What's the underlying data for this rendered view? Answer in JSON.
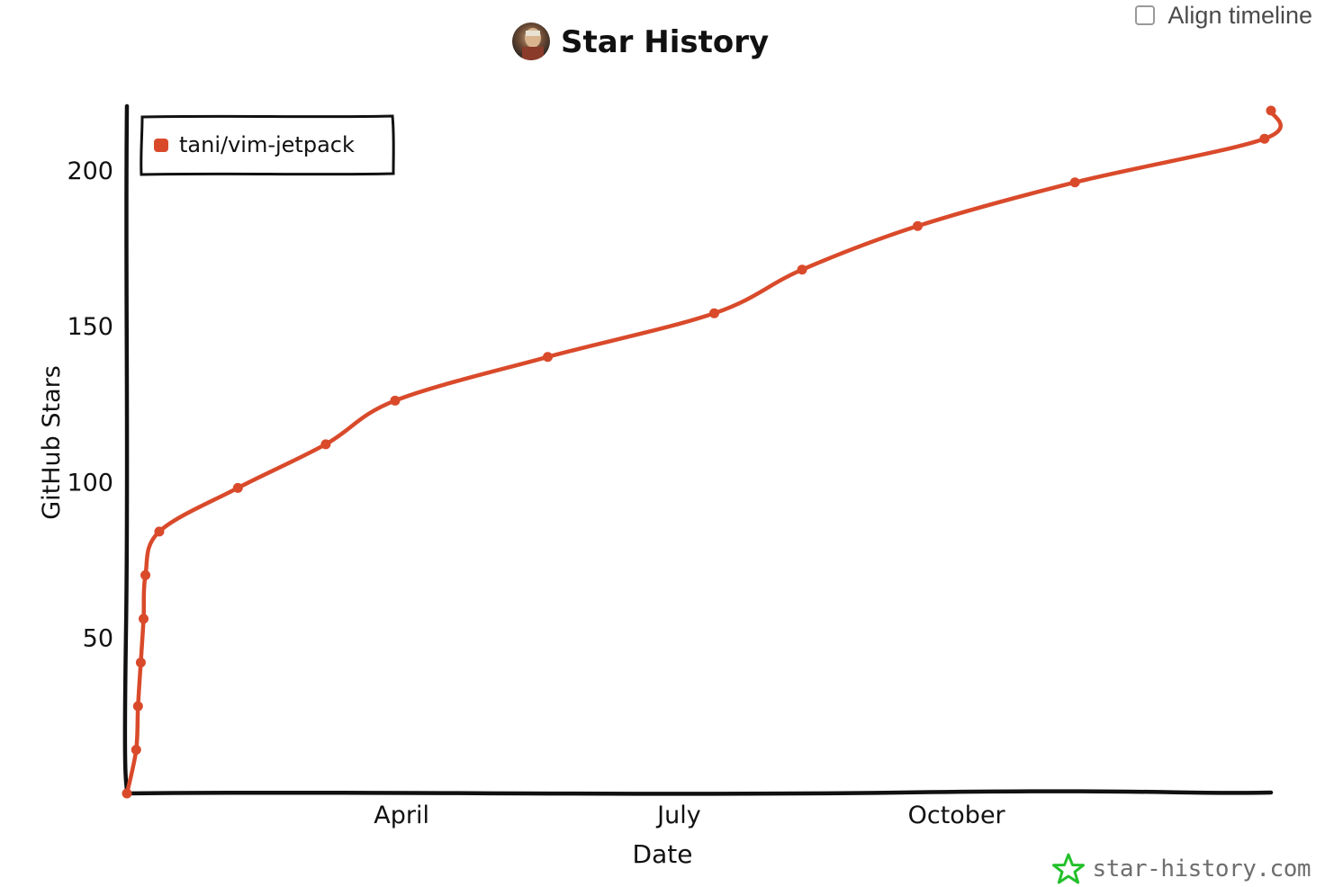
{
  "controls": {
    "align_timeline_label": "Align timeline",
    "align_timeline_checked": false
  },
  "brand": {
    "text": "star-history.com",
    "icon": "star-icon",
    "color": "#22c02a"
  },
  "chart_data": {
    "type": "line",
    "title": "Star History",
    "title_icon": "avatar",
    "xlabel": "Date",
    "ylabel": "GitHub Stars",
    "x_ticks": [
      "April",
      "July",
      "October"
    ],
    "x_tick_positions": [
      2.97,
      5.97,
      8.97
    ],
    "y_ticks": [
      50,
      100,
      150,
      200
    ],
    "xlim": [
      0,
      12.37
    ],
    "ylim": [
      0,
      219
    ],
    "grid": false,
    "legend": "top-left",
    "line_color": "#d94a2b",
    "series": [
      {
        "name": "tani/vim-jetpack",
        "points": [
          [
            0.0,
            0
          ],
          [
            0.1,
            14
          ],
          [
            0.12,
            28
          ],
          [
            0.15,
            42
          ],
          [
            0.18,
            56
          ],
          [
            0.2,
            70
          ],
          [
            0.35,
            84
          ],
          [
            1.2,
            98
          ],
          [
            2.15,
            112
          ],
          [
            2.9,
            126
          ],
          [
            4.55,
            140
          ],
          [
            6.35,
            154
          ],
          [
            7.3,
            168
          ],
          [
            8.55,
            182
          ],
          [
            10.25,
            196
          ],
          [
            12.3,
            210
          ],
          [
            12.95,
            219
          ]
        ]
      }
    ]
  }
}
